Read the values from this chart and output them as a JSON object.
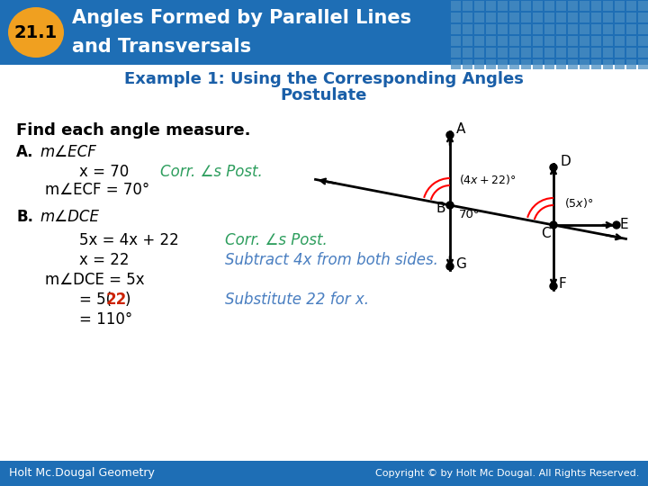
{
  "title_number": "21.1",
  "title_line1": "Angles Formed by Parallel Lines",
  "title_line2": "and Transversals",
  "header_bg": "#1e6eb5",
  "header_grid_bg": "#4a8ec2",
  "number_badge_color": "#f0a020",
  "number_badge_text": "#000000",
  "title_text_color": "#ffffff",
  "subtitle_text_color": "#1a5fa8",
  "body_bg": "#ffffff",
  "body_text_color": "#000000",
  "green_color": "#2e9e5e",
  "blue_italic_color": "#4a7fc1",
  "red_color": "#cc2200",
  "footer_bg": "#1e6eb5",
  "footer_text_color": "#ffffff",
  "footer_left": "Holt Mc.Dougal Geometry",
  "footer_right": "Copyright © by Holt Mc Dougal. All Rights Reserved.",
  "find_text": "Find each angle measure.",
  "A_step1_reason": "Corr. ∠s Post.",
  "B_step1_reason": "Corr. ∠s Post.",
  "B_step2_reason": "Subtract 4x from both sides.",
  "B_step4_reason": "Substitute 22 for x."
}
